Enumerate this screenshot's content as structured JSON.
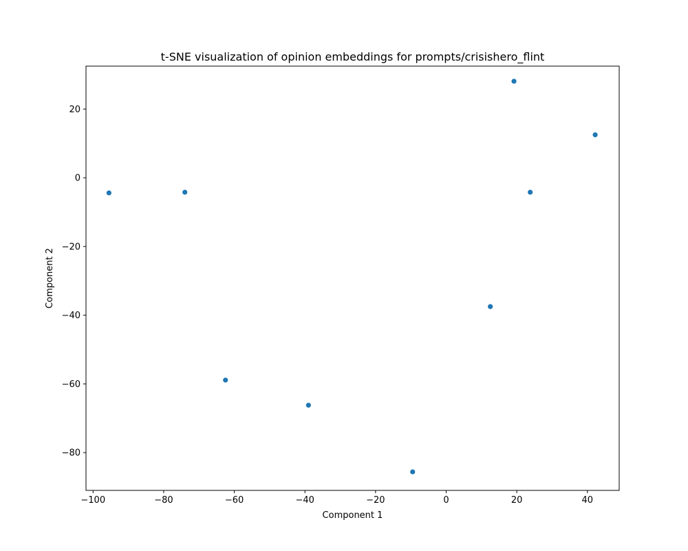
{
  "chart_data": {
    "type": "scatter",
    "title": "t-SNE visualization of opinion embeddings for prompts/crisishero_flint",
    "xlabel": "Component 1",
    "ylabel": "Component 2",
    "xlim": [
      -102,
      49
    ],
    "ylim": [
      -91,
      32.5
    ],
    "xticks": [
      -100,
      -80,
      -60,
      -40,
      -20,
      0,
      20,
      40
    ],
    "yticks": [
      -80,
      -60,
      -40,
      -20,
      0,
      20
    ],
    "grid": false,
    "legend": "none",
    "marker_color": "#1f77b4",
    "points": [
      {
        "x": -95.5,
        "y": -4.4
      },
      {
        "x": -74.0,
        "y": -4.2
      },
      {
        "x": -62.5,
        "y": -58.9
      },
      {
        "x": -39.0,
        "y": -66.2
      },
      {
        "x": -9.5,
        "y": -85.6
      },
      {
        "x": 12.5,
        "y": -37.5
      },
      {
        "x": 19.2,
        "y": 28.1
      },
      {
        "x": 23.8,
        "y": -4.2
      },
      {
        "x": 42.2,
        "y": 12.5
      }
    ]
  }
}
